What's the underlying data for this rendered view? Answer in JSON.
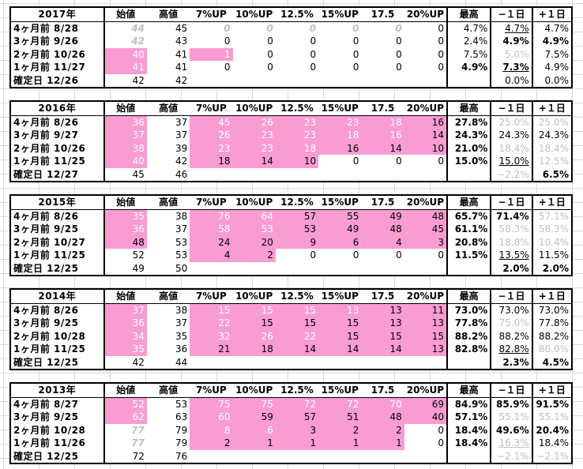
{
  "headers": [
    "始値",
    "高値",
    "7%UP",
    "10%UP",
    "12.5%",
    "15%UP",
    "17.5",
    "20%UP",
    "最高",
    "−１日",
    "+１日"
  ],
  "blocks": [
    {
      "year": "2017年",
      "rows": [
        {
          "label": "4ヶ月前  8/28",
          "cells": [
            "44",
            "45",
            "0",
            "0",
            "0",
            "0",
            "0",
            "0",
            "4.7%",
            "4.7%",
            "4.7%"
          ],
          "styles": [
            "bi",
            "",
            "bi",
            "bi",
            "bi",
            "bi",
            "bi",
            "",
            "",
            "ul",
            ""
          ]
        },
        {
          "label": "3ヶ月前  9/26",
          "cells": [
            "42",
            "43",
            "0",
            "0",
            "0",
            "0",
            "0",
            "0",
            "2.4%",
            "4.9%",
            "4.9%"
          ],
          "styles": [
            "bi",
            "",
            "",
            "",
            "",
            "",
            "",
            "",
            "",
            "b",
            "b"
          ]
        },
        {
          "label": "2ヶ月前  10/26",
          "cells": [
            "40",
            "41",
            "1",
            "0",
            "0",
            "0",
            "0",
            "0",
            "7.5%",
            "5.0%",
            "7.5%"
          ],
          "styles": [
            "pink",
            "",
            "pink",
            "",
            "",
            "",
            "",
            "",
            "",
            "gray",
            ""
          ]
        },
        {
          "label": "1ヶ月前  11/27",
          "cells": [
            "41",
            "41",
            "0",
            "0",
            "0",
            "0",
            "0",
            "0",
            "4.9%",
            "7.3%",
            "4.9%"
          ],
          "styles": [
            "pink",
            "",
            "",
            "",
            "",
            "",
            "",
            "",
            "b",
            "b ul",
            ""
          ]
        },
        {
          "label": "確定日  12/26",
          "cells": [
            "42",
            "42",
            "",
            "",
            "",
            "",
            "",
            "",
            "",
            "0.0%",
            "0.0%"
          ],
          "styles": [
            "",
            "",
            "",
            "",
            "",
            "",
            "",
            "",
            "",
            "",
            ""
          ]
        }
      ]
    },
    {
      "year": "2016年",
      "rows": [
        {
          "label": "4ヶ月前  8/26",
          "cells": [
            "36",
            "37",
            "45",
            "26",
            "23",
            "23",
            "18",
            "16",
            "27.8%",
            "25.0%",
            "25.0%"
          ],
          "styles": [
            "pink",
            "",
            "pink",
            "pink",
            "pink",
            "pink",
            "pink",
            "pinkd",
            "b",
            "gray",
            "gray"
          ]
        },
        {
          "label": "3ヶ月前  9/27",
          "cells": [
            "37",
            "37",
            "26",
            "23",
            "23",
            "18",
            "16",
            "14",
            "24.3%",
            "24.3%",
            "24.3%"
          ],
          "styles": [
            "pink",
            "",
            "pink",
            "pink",
            "pink",
            "pink",
            "pink",
            "pinkd",
            "b",
            "",
            ""
          ]
        },
        {
          "label": "2ヶ月前  10/26",
          "cells": [
            "38",
            "39",
            "23",
            "23",
            "18",
            "16",
            "14",
            "10",
            "21.0%",
            "18.4%",
            "18.4%"
          ],
          "styles": [
            "pink",
            "",
            "pink",
            "pink",
            "pink",
            "pinkd",
            "pinkd",
            "pinkd",
            "b",
            "gray",
            "gray"
          ]
        },
        {
          "label": "1ヶ月前  11/25",
          "cells": [
            "40",
            "42",
            "18",
            "14",
            "10",
            "0",
            "0",
            "0",
            "15.0%",
            "15.0%",
            "12.5%"
          ],
          "styles": [
            "pink",
            "",
            "pinkd",
            "pinkd",
            "pinkd",
            "",
            "",
            "",
            "b",
            "ul",
            "gray"
          ]
        },
        {
          "label": "確定日  12/27",
          "cells": [
            "45",
            "46",
            "",
            "",
            "",
            "",
            "",
            "",
            "",
            "−2.2%",
            "6.5%"
          ],
          "styles": [
            "",
            "",
            "",
            "",
            "",
            "",
            "",
            "",
            "",
            "gray",
            "b"
          ]
        }
      ]
    },
    {
      "year": "2015年",
      "rows": [
        {
          "label": "4ヶ月前  8/26",
          "cells": [
            "35",
            "38",
            "76",
            "64",
            "57",
            "55",
            "49",
            "48",
            "65.7%",
            "71.4%",
            "57.1%"
          ],
          "styles": [
            "pink",
            "",
            "pink",
            "pink",
            "pinkd",
            "pinkd",
            "pinkd",
            "pinkd",
            "b",
            "b",
            "gray"
          ]
        },
        {
          "label": "3ヶ月前  9/25",
          "cells": [
            "36",
            "37",
            "58",
            "53",
            "53",
            "49",
            "48",
            "45",
            "61.1%",
            "58.3%",
            "58.3%"
          ],
          "styles": [
            "pink",
            "",
            "pink",
            "pink",
            "pinkd",
            "pinkd",
            "pinkd",
            "pinkd",
            "b",
            "gray",
            "gray"
          ]
        },
        {
          "label": "2ヶ月前  10/27",
          "cells": [
            "48",
            "53",
            "24",
            "20",
            "9",
            "6",
            "4",
            "3",
            "20.8%",
            "18.8%",
            "10.4%"
          ],
          "styles": [
            "pinkd",
            "",
            "pinkd",
            "pinkd",
            "pinkd",
            "pinkd",
            "pinkd",
            "pinkd",
            "b",
            "gray",
            "gray"
          ]
        },
        {
          "label": "1ヶ月前  11/25",
          "cells": [
            "52",
            "53",
            "4",
            "2",
            "0",
            "0",
            "0",
            "0",
            "11.5%",
            "13.5%",
            "11.5%"
          ],
          "styles": [
            "",
            "",
            "pinkd",
            "pinkd",
            "",
            "",
            "",
            "",
            "b",
            "ul",
            ""
          ]
        },
        {
          "label": "確定日  12/25",
          "cells": [
            "49",
            "50",
            "",
            "",
            "",
            "",
            "",
            "",
            "",
            "2.0%",
            "2.0%"
          ],
          "styles": [
            "",
            "",
            "",
            "",
            "",
            "",
            "",
            "",
            "",
            "b",
            "b"
          ]
        }
      ]
    },
    {
      "year": "2014年",
      "rows": [
        {
          "label": "4ヶ月前  8/26",
          "cells": [
            "37",
            "38",
            "15",
            "15",
            "15",
            "13",
            "13",
            "11",
            "73.0%",
            "73.0%",
            "73.0%"
          ],
          "styles": [
            "pink",
            "",
            "pink",
            "pink",
            "pink",
            "pink",
            "pinkd",
            "pinkd",
            "b",
            "",
            ""
          ]
        },
        {
          "label": "3ヶ月前  9/25",
          "cells": [
            "36",
            "37",
            "22",
            "15",
            "15",
            "15",
            "13",
            "13",
            "77.8%",
            "75.0%",
            "77.8%"
          ],
          "styles": [
            "pink",
            "",
            "pink",
            "pinkd",
            "pinkd",
            "pinkd",
            "pinkd",
            "pinkd",
            "b",
            "gray",
            ""
          ]
        },
        {
          "label": "2ヶ月前  10/28",
          "cells": [
            "34",
            "35",
            "32",
            "26",
            "22",
            "15",
            "15",
            "15",
            "88.2%",
            "88.2%",
            "88.2%"
          ],
          "styles": [
            "pink",
            "",
            "pink",
            "pink",
            "pink",
            "pinkd",
            "pinkd",
            "pinkd",
            "b",
            "",
            ""
          ]
        },
        {
          "label": "1ヶ月前  11/25",
          "cells": [
            "35",
            "36",
            "21",
            "18",
            "14",
            "14",
            "14",
            "13",
            "82.8%",
            "82.8%",
            "80.0%"
          ],
          "styles": [
            "pink",
            "",
            "pinkd",
            "pinkd",
            "pinkd",
            "pinkd",
            "pinkd",
            "pinkd",
            "b",
            "ul",
            "gray"
          ]
        },
        {
          "label": "確定日  12/25",
          "cells": [
            "42",
            "44",
            "",
            "",
            "",
            "",
            "",
            "",
            "",
            "2.3%",
            "4.5%"
          ],
          "styles": [
            "",
            "",
            "",
            "",
            "",
            "",
            "",
            "",
            "",
            "b",
            "b"
          ]
        }
      ]
    },
    {
      "year": "2013年",
      "rows": [
        {
          "label": "4ヶ月前  8/27",
          "cells": [
            "52",
            "53",
            "75",
            "75",
            "72",
            "72",
            "70",
            "69",
            "84.9%",
            "85.9%",
            "91.5%"
          ],
          "styles": [
            "pink",
            "",
            "pink",
            "pink",
            "pink",
            "pink",
            "pink",
            "pinkd",
            "b",
            "b",
            "b"
          ]
        },
        {
          "label": "3ヶ月前  9/25",
          "cells": [
            "62",
            "63",
            "60",
            "59",
            "57",
            "51",
            "48",
            "40",
            "57.1%",
            "55.1%",
            "55.1%"
          ],
          "styles": [
            "pink",
            "",
            "pink",
            "pinkd",
            "pinkd",
            "pinkd",
            "pinkd",
            "pinkd",
            "b",
            "gray",
            "gray"
          ]
        },
        {
          "label": "2ヶ月前  10/28",
          "cells": [
            "77",
            "79",
            "8",
            "6",
            "3",
            "2",
            "2",
            "0",
            "18.4%",
            "49.6%",
            "20.4%"
          ],
          "styles": [
            "bi",
            "",
            "pink",
            "pink",
            "pinkd",
            "pinkd",
            "pinkd",
            "",
            "b",
            "b",
            "b"
          ]
        },
        {
          "label": "1ヶ月前  11/26",
          "cells": [
            "77",
            "79",
            "2",
            "1",
            "1",
            "1",
            "1",
            "0",
            "18.4%",
            "16.3%",
            "18.4%"
          ],
          "styles": [
            "bi",
            "",
            "pinkd",
            "pinkd",
            "pinkd",
            "pinkd",
            "pinkd",
            "",
            "b",
            "gray ul",
            ""
          ]
        },
        {
          "label": "確定日  12/25",
          "cells": [
            "72",
            "76",
            "",
            "",
            "",
            "",
            "",
            "",
            "",
            "−2.1%",
            "−2.1%"
          ],
          "styles": [
            "",
            "",
            "",
            "",
            "",
            "",
            "",
            "",
            "",
            "gray",
            "gray"
          ]
        }
      ]
    }
  ]
}
